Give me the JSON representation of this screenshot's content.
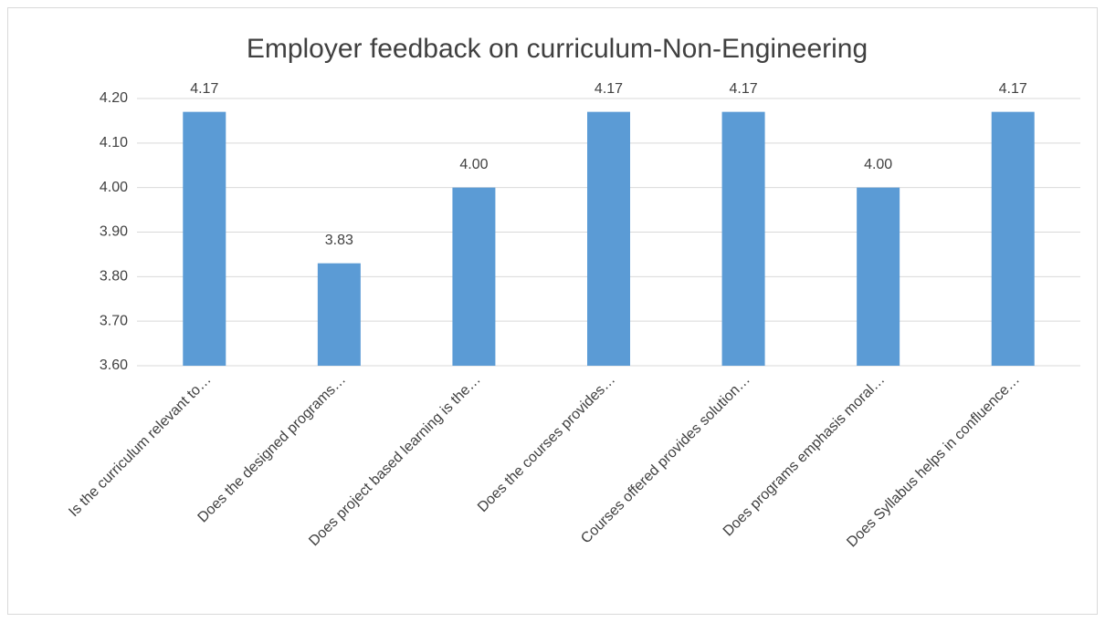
{
  "chart_data": {
    "type": "bar",
    "title": "Employer feedback on curriculum-Non-Engineering",
    "categories": [
      "Is the curriculum relevant to…",
      "Does the designed programs…",
      "Does project based learning is the…",
      "Does the courses provides…",
      "Courses offered provides solution…",
      "Does programs emphasis moral…",
      "Does Syllabus helps in confluence…"
    ],
    "values": [
      4.17,
      3.83,
      4.0,
      4.17,
      4.17,
      4.0,
      4.17
    ],
    "value_labels": [
      "4.17",
      "3.83",
      "4.00",
      "4.17",
      "4.17",
      "4.00",
      "4.17"
    ],
    "color": "#5b9bd5",
    "ylim": [
      3.6,
      4.2
    ],
    "yticks": [
      {
        "value": 3.6,
        "label": "3.60"
      },
      {
        "value": 3.7,
        "label": "3.70"
      },
      {
        "value": 3.8,
        "label": "3.80"
      },
      {
        "value": 3.9,
        "label": "3.90"
      },
      {
        "value": 4.0,
        "label": "4.00"
      },
      {
        "value": 4.1,
        "label": "4.10"
      },
      {
        "value": 4.2,
        "label": "4.20"
      }
    ],
    "grid": true
  }
}
